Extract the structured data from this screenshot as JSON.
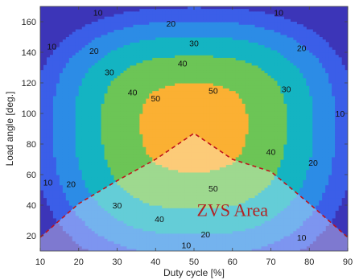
{
  "chart_data": {
    "type": "heatmap",
    "title": "",
    "xlabel": "Duty cycle [%]",
    "ylabel": "Load angle [deg.]",
    "xlim": [
      10,
      90
    ],
    "ylim": [
      10,
      170
    ],
    "xticks": [
      10,
      20,
      30,
      40,
      50,
      60,
      70,
      80,
      90
    ],
    "yticks": [
      20,
      40,
      60,
      80,
      100,
      120,
      140,
      160
    ],
    "grid": false,
    "contour_levels": [
      10,
      20,
      30,
      40,
      50
    ],
    "level_colors": [
      "#3c35b8",
      "#3b5ee8",
      "#2c8ce6",
      "#14b4c2",
      "#6cc556",
      "#fbb033"
    ],
    "approx_peak_value": 55,
    "peak_location": {
      "x": 50,
      "y": 95
    },
    "contour_labels": [
      {
        "text": "10",
        "x": 25,
        "y": 166
      },
      {
        "text": "10",
        "x": 72,
        "y": 166
      },
      {
        "text": "10",
        "x": 13,
        "y": 144
      },
      {
        "text": "10",
        "x": 88,
        "y": 100
      },
      {
        "text": "10",
        "x": 12,
        "y": 55
      },
      {
        "text": "10",
        "x": 48,
        "y": 14
      },
      {
        "text": "10",
        "x": 78,
        "y": 19
      },
      {
        "text": "20",
        "x": 44,
        "y": 159
      },
      {
        "text": "20",
        "x": 24,
        "y": 141
      },
      {
        "text": "20",
        "x": 78,
        "y": 143
      },
      {
        "text": "20",
        "x": 81,
        "y": 68
      },
      {
        "text": "20",
        "x": 18,
        "y": 54
      },
      {
        "text": "20",
        "x": 53,
        "y": 21
      },
      {
        "text": "30",
        "x": 50,
        "y": 146
      },
      {
        "text": "30",
        "x": 28,
        "y": 127
      },
      {
        "text": "30",
        "x": 74,
        "y": 116
      },
      {
        "text": "30",
        "x": 30,
        "y": 40
      },
      {
        "text": "40",
        "x": 47,
        "y": 133
      },
      {
        "text": "40",
        "x": 34,
        "y": 114
      },
      {
        "text": "40",
        "x": 70,
        "y": 75
      },
      {
        "text": "40",
        "x": 41,
        "y": 31
      },
      {
        "text": "50",
        "x": 40,
        "y": 110
      },
      {
        "text": "50",
        "x": 55,
        "y": 115
      },
      {
        "text": "50",
        "x": 55,
        "y": 51
      }
    ],
    "zvs_boundary": [
      [
        10,
        19
      ],
      [
        20,
        41
      ],
      [
        30,
        56
      ],
      [
        40,
        70
      ],
      [
        50,
        87
      ],
      [
        60,
        70
      ],
      [
        70,
        62
      ],
      [
        80,
        41
      ],
      [
        90,
        19
      ]
    ],
    "annotation": "ZVS Area"
  }
}
